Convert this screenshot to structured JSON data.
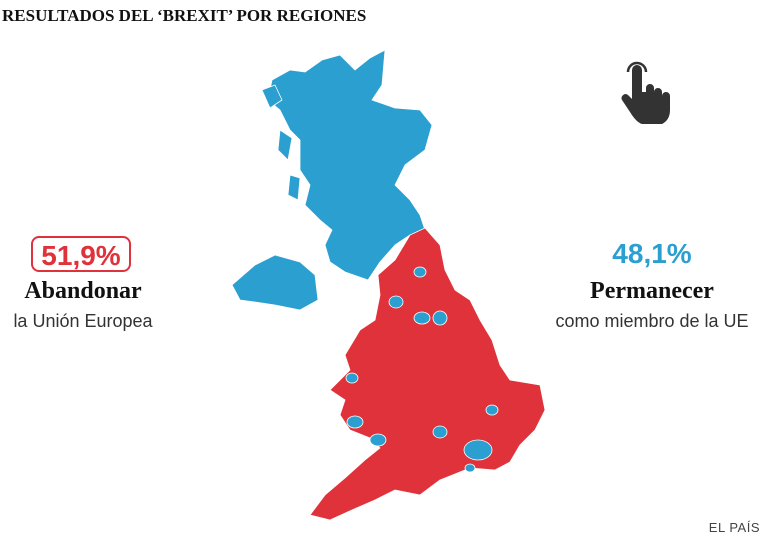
{
  "header": {
    "title": "RESULTADOS DEL ‘BREXIT’ POR REGIONES"
  },
  "leave": {
    "share": "51,9%",
    "label": "Abandonar",
    "sublabel": "la Unión Europea"
  },
  "remain": {
    "share": "48,1%",
    "label": "Permanecer",
    "sublabel": "como miembro de la UE"
  },
  "footer": {
    "source": "EL PAÍS"
  }
}
